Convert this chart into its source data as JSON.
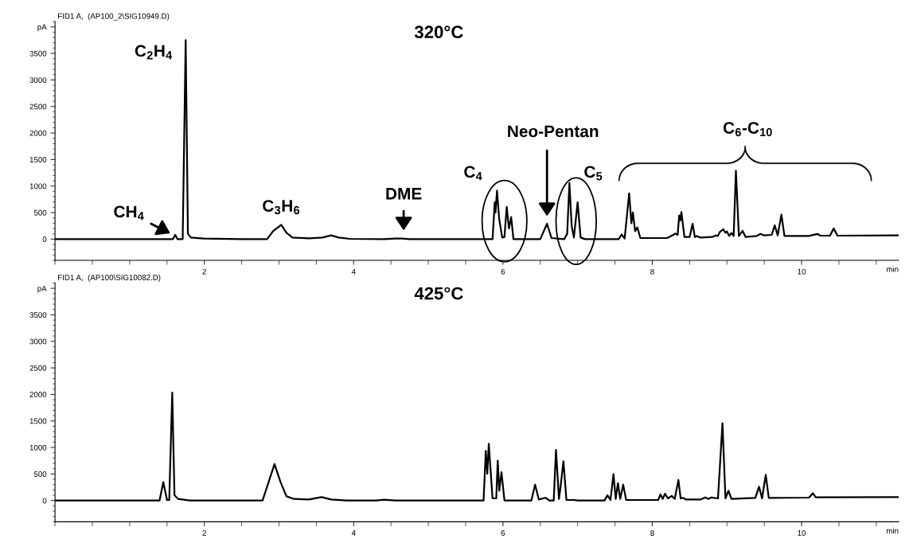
{
  "chart_data": [
    {
      "type": "line",
      "title": "320°C",
      "subtitle": "FID1 A,  (AP100_2\\SIG10949.D)",
      "xlabel": "min",
      "line_style": "solid",
      "xlim": [
        0,
        11.3
      ],
      "ylim": [
        -400,
        4100
      ],
      "xticks": [
        2,
        4,
        6,
        8,
        10
      ],
      "yticks": [
        0,
        500,
        1000,
        1500,
        2000,
        2500,
        3000,
        3500,
        {
          "value": 4000,
          "label": "pA"
        }
      ],
      "annotations": [
        "CH$_{4}$",
        "C$_{2}$H$_{4}$",
        "C$_{3}$H$_{6}$",
        "DME",
        "C$_{4}$",
        "Neo-Pentan",
        "C$_{5}$",
        "C$_{6}$-C$_{10}$"
      ],
      "series": [
        {
          "color": "#000000",
          "x": [
            0,
            1.5,
            1.58,
            1.61,
            1.64,
            1.71,
            1.75,
            1.78,
            1.82,
            2.0,
            2.5,
            2.84,
            2.92,
            3.03,
            3.1,
            3.18,
            3.4,
            3.58,
            3.7,
            3.8,
            3.95,
            4.4,
            4.55,
            4.65,
            4.75,
            5.86,
            5.89,
            5.9,
            5.92,
            5.95,
            5.99,
            6.02,
            6.05,
            6.08,
            6.11,
            6.14,
            6.5,
            6.59,
            6.65,
            6.82,
            6.86,
            6.89,
            6.92,
            6.95,
            7.0,
            7.04,
            7.1,
            7.55,
            7.59,
            7.63,
            7.69,
            7.72,
            7.74,
            7.77,
            7.8,
            7.84,
            8.2,
            8.31,
            8.34,
            8.36,
            8.375,
            8.39,
            8.43,
            8.5,
            8.54,
            8.57,
            8.6,
            8.64,
            8.8,
            8.85,
            8.88,
            8.9,
            8.95,
            8.98,
            9.0,
            9.03,
            9.06,
            9.09,
            9.12,
            9.16,
            9.21,
            9.25,
            9.4,
            9.45,
            9.5,
            9.6,
            9.64,
            9.68,
            9.73,
            9.77,
            10.1,
            10.21,
            10.25,
            10.38,
            10.43,
            10.48,
            11.3
          ],
          "values": [
            0,
            0,
            0,
            80,
            0,
            0,
            3750,
            100,
            30,
            10,
            0,
            0,
            150,
            270,
            120,
            30,
            15,
            30,
            70,
            30,
            5,
            0,
            10,
            10,
            0,
            0,
            694,
            500,
            913,
            375,
            30,
            40,
            607,
            200,
            416,
            0,
            0,
            290,
            20,
            0,
            100,
            1058,
            250,
            30,
            694,
            30,
            0,
            0,
            87,
            10,
            861,
            300,
            503,
            150,
            220,
            20,
            20,
            104,
            80,
            445,
            350,
            509,
            40,
            40,
            289,
            40,
            58,
            30,
            40,
            70,
            60,
            127,
            185,
            120,
            145,
            60,
            116,
            60,
            1289,
            60,
            156,
            40,
            60,
            98,
            70,
            80,
            260,
            70,
            462,
            60,
            60,
            98,
            65,
            65,
            202,
            65,
            70
          ]
        }
      ]
    },
    {
      "type": "line",
      "title": "425°C",
      "subtitle": "FID1 A,  (AP100\\SIG10082.D)",
      "xlabel": "min",
      "line_style": "solid",
      "xlim": [
        0,
        11.3
      ],
      "ylim": [
        -400,
        4100
      ],
      "xticks": [
        2,
        4,
        6,
        8,
        10
      ],
      "yticks": [
        0,
        500,
        1000,
        1500,
        2000,
        2500,
        3000,
        3500,
        {
          "value": 4000,
          "label": "pA"
        }
      ],
      "series": [
        {
          "color": "#000000",
          "x": [
            0,
            1.4,
            1.45,
            1.5,
            1.53,
            1.57,
            1.6,
            1.65,
            1.8,
            2.78,
            2.85,
            2.94,
            3.02,
            3.1,
            3.2,
            3.4,
            3.57,
            3.7,
            3.9,
            4.3,
            4.41,
            4.55,
            5.74,
            5.77,
            5.79,
            5.81,
            5.86,
            5.91,
            5.93,
            5.95,
            5.98,
            6.02,
            6.38,
            6.43,
            6.48,
            6.57,
            6.62,
            6.68,
            6.71,
            6.75,
            6.77,
            6.81,
            6.85,
            6.95,
            7.0,
            7.36,
            7.4,
            7.44,
            7.48,
            7.51,
            7.54,
            7.57,
            7.61,
            7.65,
            8.08,
            8.11,
            8.14,
            8.17,
            8.21,
            8.26,
            8.3,
            8.35,
            8.38,
            8.41,
            8.45,
            8.65,
            8.71,
            8.75,
            8.79,
            8.88,
            8.94,
            8.98,
            9.02,
            9.06,
            9.38,
            9.43,
            9.47,
            9.52,
            9.56,
            10.1,
            10.15,
            10.19,
            11.3
          ],
          "values": [
            0,
            0,
            347,
            10,
            10,
            2035,
            100,
            30,
            0,
            0,
            300,
            688,
            350,
            80,
            30,
            20,
            64,
            20,
            0,
            0,
            15,
            0,
            0,
            936,
            503,
            1069,
            40,
            40,
            751,
            185,
            532,
            0,
            0,
            300,
            20,
            52,
            0,
            0,
            954,
            30,
            243,
            740,
            10,
            10,
            0,
            0,
            98,
            10,
            497,
            30,
            329,
            30,
            300,
            10,
            10,
            116,
            30,
            127,
            40,
            87,
            30,
            387,
            40,
            52,
            20,
            20,
            58,
            30,
            58,
            40,
            1457,
            40,
            185,
            30,
            50,
            260,
            40,
            486,
            50,
            55,
            139,
            60,
            64
          ]
        }
      ]
    }
  ]
}
